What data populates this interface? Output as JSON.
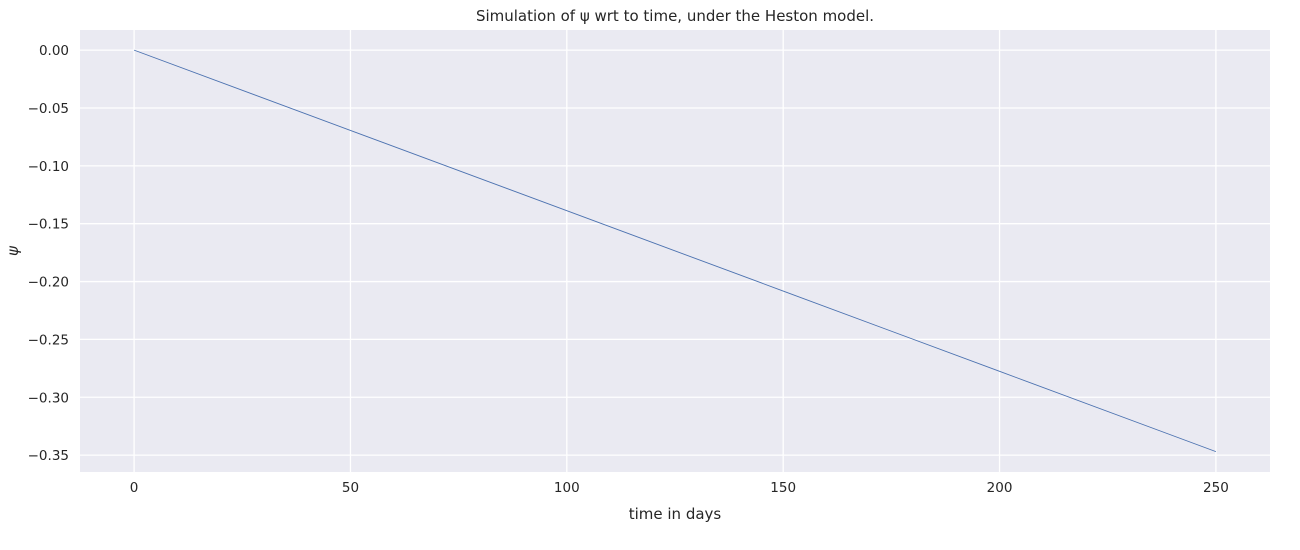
{
  "chart_data": {
    "type": "line",
    "title": "Simulation of ψ wrt to time, under the Heston model.",
    "xlabel": "time in days",
    "ylabel": "ψ",
    "xlim": [
      -12.5,
      262.5
    ],
    "ylim": [
      -0.3646,
      0.0174
    ],
    "xticks": [
      0,
      50,
      100,
      150,
      200,
      250
    ],
    "xtick_labels": [
      "0",
      "50",
      "100",
      "150",
      "200",
      "250"
    ],
    "yticks": [
      0.0,
      -0.05,
      -0.1,
      -0.15,
      -0.2,
      -0.25,
      -0.3,
      -0.35
    ],
    "ytick_labels": [
      "0.00",
      "−0.05",
      "−0.10",
      "−0.15",
      "−0.20",
      "−0.25",
      "−0.30",
      "−0.35"
    ],
    "grid": true,
    "background_color": "#eaeaf2",
    "grid_color": "#ffffff",
    "series": [
      {
        "color": "#4c72b0",
        "x": [
          0,
          50,
          100,
          150,
          200,
          250
        ],
        "y": [
          0.0,
          -0.0694,
          -0.1388,
          -0.2082,
          -0.2776,
          -0.347
        ]
      }
    ]
  }
}
